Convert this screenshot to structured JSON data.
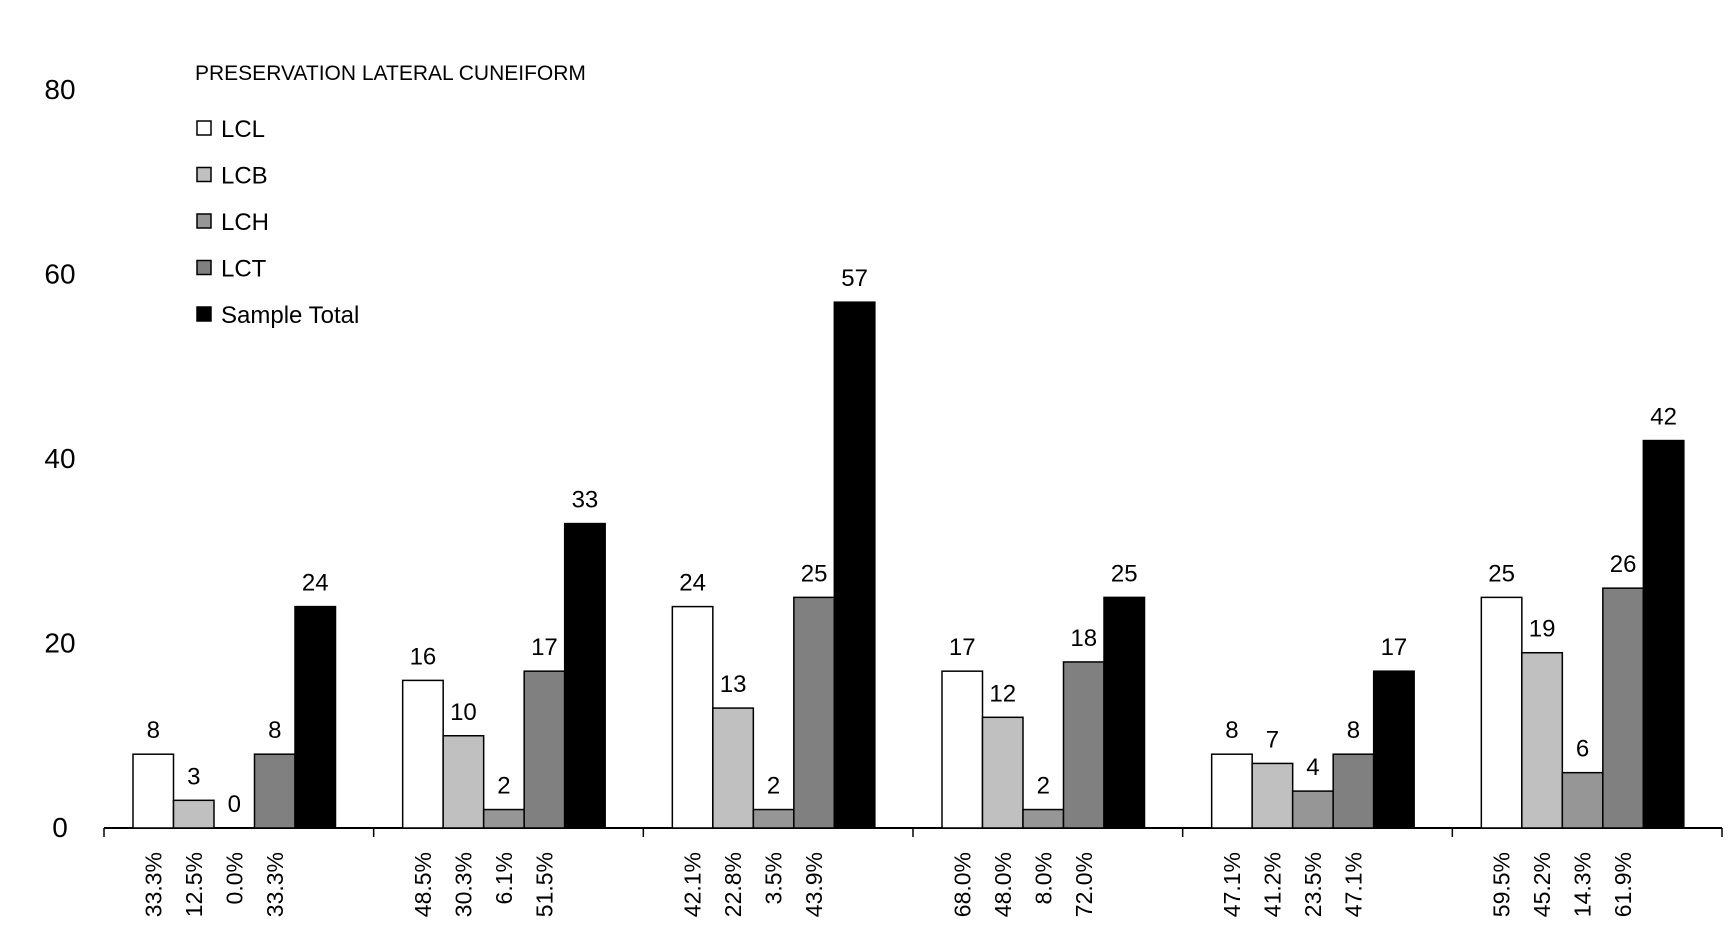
{
  "chart_data": {
    "type": "bar",
    "title": "PRESERVATION LATERAL CUNEIFORM",
    "xlabel": "",
    "ylabel": "",
    "ylim": [
      0,
      80
    ],
    "yticks": [
      0,
      20,
      40,
      60,
      80
    ],
    "grid": false,
    "legend": "top-left",
    "groups": 6,
    "series": [
      {
        "name": "LCL",
        "color": "#ffffff",
        "values": [
          8,
          16,
          24,
          17,
          8,
          25
        ]
      },
      {
        "name": "LCB",
        "color": "#c0c0c0",
        "values": [
          3,
          10,
          13,
          12,
          7,
          19
        ]
      },
      {
        "name": "LCH",
        "color": "#969696",
        "values": [
          0,
          2,
          2,
          2,
          4,
          6
        ]
      },
      {
        "name": "LCT",
        "color": "#808080",
        "values": [
          8,
          17,
          25,
          18,
          8,
          26
        ]
      },
      {
        "name": "Sample Total",
        "color": "#000000",
        "values": [
          24,
          33,
          57,
          25,
          17,
          42
        ]
      }
    ],
    "percent_labels": [
      [
        "33.3%",
        "12.5%",
        "0.0%",
        "33.3%"
      ],
      [
        "48.5%",
        "30.3%",
        "6.1%",
        "51.5%"
      ],
      [
        "42.1%",
        "22.8%",
        "3.5%",
        "43.9%"
      ],
      [
        "68.0%",
        "48.0%",
        "8.0%",
        "72.0%"
      ],
      [
        "47.1%",
        "41.2%",
        "23.5%",
        "47.1%"
      ],
      [
        "59.5%",
        "45.2%",
        "14.3%",
        "61.9%"
      ]
    ]
  }
}
